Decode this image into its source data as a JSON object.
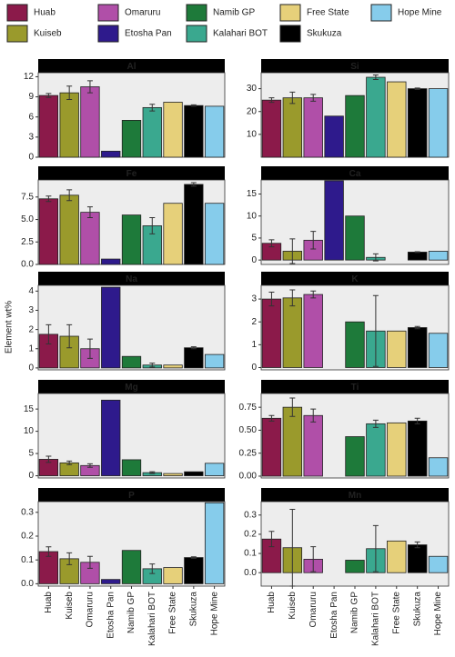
{
  "categories": [
    "Huab",
    "Kuiseb",
    "Omaruru",
    "Etosha Pan",
    "Namib GP",
    "Kalahari BOT",
    "Free State",
    "Skukuza",
    "Hope Mine"
  ],
  "colors": [
    "#8b1a4a",
    "#9a9a2c",
    "#b04fa8",
    "#2e1a8c",
    "#1e7a3a",
    "#3aa88f",
    "#e6d07a",
    "#000000",
    "#86cceb"
  ],
  "y_label": "Element wt%",
  "chart_data": [
    {
      "type": "bar",
      "title": "Al",
      "values": [
        9.2,
        9.6,
        10.5,
        0.9,
        5.5,
        7.4,
        8.2,
        7.7,
        7.6
      ],
      "errors": [
        0.3,
        1.0,
        0.9,
        null,
        null,
        0.5,
        null,
        0.1,
        null
      ],
      "ylim": [
        0,
        12.6
      ],
      "yticks": [
        0,
        3,
        6,
        9,
        12
      ]
    },
    {
      "type": "bar",
      "title": "Si",
      "values": [
        25,
        26,
        26,
        18,
        27,
        35,
        33,
        30,
        30
      ],
      "errors": [
        1,
        2.5,
        1.5,
        null,
        null,
        1,
        null,
        0.3,
        null
      ],
      "ylim": [
        0,
        37
      ],
      "yticks": [
        10,
        20,
        30
      ]
    },
    {
      "type": "bar",
      "title": "Fe",
      "values": [
        7.3,
        7.7,
        5.8,
        0.6,
        5.5,
        4.3,
        6.8,
        8.9,
        6.8
      ],
      "errors": [
        0.3,
        0.6,
        0.6,
        null,
        null,
        0.9,
        null,
        0.2,
        null
      ],
      "ylim": [
        0,
        9.4
      ],
      "yticks": [
        {
          "value": 0,
          "label": "0.0"
        },
        2.5,
        {
          "value": 5,
          "label": "5.0"
        },
        7.5
      ]
    },
    {
      "type": "bar",
      "title": "Ca",
      "values": [
        3.8,
        2.0,
        4.5,
        18,
        10,
        0.6,
        0,
        1.8,
        2.0
      ],
      "errors": [
        0.8,
        2.8,
        2.0,
        null,
        null,
        0.8,
        null,
        0.1,
        null
      ],
      "ylim": [
        -1,
        18.2
      ],
      "yticks": [
        0,
        5,
        10,
        15
      ]
    },
    {
      "type": "bar",
      "title": "Na",
      "values": [
        1.75,
        1.65,
        1.0,
        4.2,
        0.6,
        0.15,
        0.15,
        1.05,
        0.7
      ],
      "errors": [
        0.5,
        0.6,
        0.5,
        null,
        null,
        0.1,
        null,
        0.05,
        null
      ],
      "ylim": [
        -0.1,
        4.3
      ],
      "yticks": [
        0,
        1,
        2,
        3,
        4
      ]
    },
    {
      "type": "bar",
      "title": "K",
      "values": [
        3.0,
        3.05,
        3.2,
        0,
        2.0,
        1.6,
        1.6,
        1.75,
        1.5
      ],
      "errors": [
        0.3,
        0.35,
        0.15,
        null,
        null,
        1.55,
        null,
        0.05,
        null
      ],
      "ylim": [
        -0.1,
        3.6
      ],
      "yticks": [
        0,
        1,
        2,
        3
      ]
    },
    {
      "type": "bar",
      "title": "Mg",
      "values": [
        3.7,
        2.9,
        2.3,
        17,
        3.6,
        0.7,
        0.5,
        0.9,
        2.8
      ],
      "errors": [
        0.7,
        0.4,
        0.4,
        null,
        null,
        0.2,
        null,
        null,
        null
      ],
      "ylim": [
        -0.5,
        18.5
      ],
      "yticks": [
        0,
        5,
        10,
        15
      ]
    },
    {
      "type": "bar",
      "title": "Ti",
      "values": [
        0.63,
        0.75,
        0.66,
        0,
        0.43,
        0.57,
        0.58,
        0.6,
        0.2
      ],
      "errors": [
        0.03,
        0.1,
        0.07,
        null,
        null,
        0.04,
        null,
        0.03,
        null
      ],
      "ylim": [
        -0.02,
        0.9
      ],
      "yticks": [
        {
          "value": 0,
          "label": "0.00"
        },
        0.25,
        {
          "value": 0.5,
          "label": "0.50"
        },
        0.75
      ]
    },
    {
      "type": "bar",
      "title": "P",
      "values": [
        0.135,
        0.105,
        0.09,
        0.018,
        0.14,
        0.063,
        0.068,
        0.11,
        0.34
      ],
      "errors": [
        0.02,
        0.025,
        0.025,
        null,
        null,
        0.02,
        null,
        0.003,
        null
      ],
      "ylim": [
        -0.01,
        0.345
      ],
      "yticks": [
        {
          "value": 0,
          "label": "0.0"
        },
        0.1,
        0.2,
        0.3
      ]
    },
    {
      "type": "bar",
      "title": "Mn",
      "values": [
        0.175,
        0.13,
        0.07,
        0,
        0.065,
        0.125,
        0.165,
        0.145,
        0.085
      ],
      "errors": [
        0.04,
        0.2,
        0.065,
        null,
        null,
        0.12,
        null,
        0.015,
        null
      ],
      "ylim": [
        -0.07,
        0.37
      ],
      "yticks": [
        {
          "value": 0,
          "label": "0.0"
        },
        0.1,
        0.2,
        0.3
      ]
    }
  ]
}
